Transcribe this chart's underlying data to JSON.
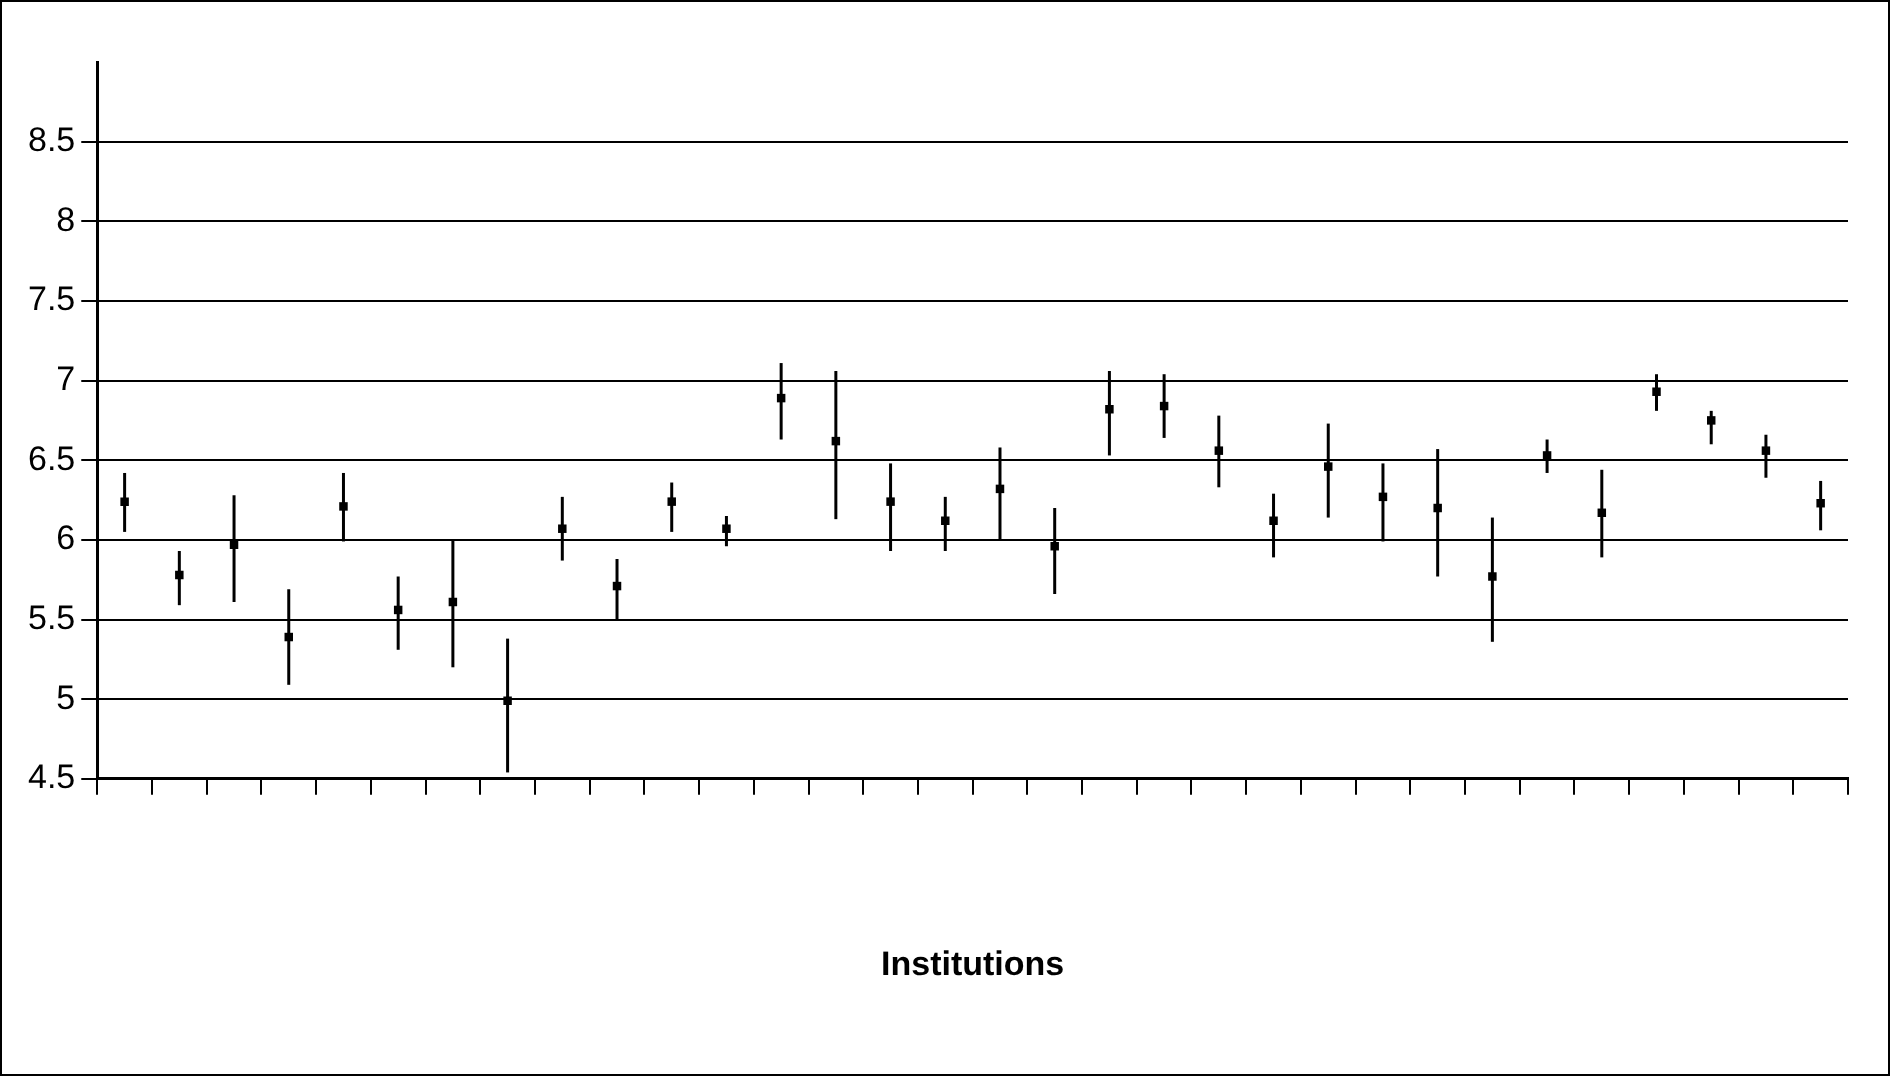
{
  "chart_data": {
    "type": "scatter",
    "xlabel": "Institutions",
    "categories": [
      null,
      null,
      null,
      null,
      null,
      null,
      null,
      null,
      null,
      null,
      null,
      null,
      null,
      null,
      null,
      null,
      null,
      null,
      null,
      null,
      null,
      null,
      null,
      null,
      null,
      null,
      null,
      null,
      null,
      null,
      null,
      null
    ],
    "series": [
      {
        "color": "#000000",
        "values": [
          6.24,
          5.78,
          5.97,
          5.39,
          6.21,
          5.56,
          5.61,
          4.99,
          6.07,
          5.71,
          6.24,
          6.07,
          6.89,
          6.62,
          6.24,
          6.12,
          6.32,
          5.96,
          6.82,
          6.84,
          6.56,
          6.12,
          6.46,
          6.27,
          6.2,
          5.77,
          6.53,
          6.17,
          6.93,
          6.75,
          6.56,
          6.23
        ],
        "errors": [
          [
            6.05,
            6.42
          ],
          [
            5.59,
            5.93
          ],
          [
            5.61,
            6.28
          ],
          [
            5.09,
            5.69
          ],
          [
            5.99,
            6.42
          ],
          [
            5.31,
            5.77
          ],
          [
            5.2,
            6.0
          ],
          [
            4.54,
            5.38
          ],
          [
            5.87,
            6.27
          ],
          [
            5.5,
            5.88
          ],
          [
            6.05,
            6.36
          ],
          [
            5.96,
            6.15
          ],
          [
            6.63,
            7.11
          ],
          [
            6.13,
            7.06
          ],
          [
            5.93,
            6.48
          ],
          [
            5.93,
            6.27
          ],
          [
            6.0,
            6.58
          ],
          [
            5.66,
            6.2
          ],
          [
            6.53,
            7.06
          ],
          [
            6.64,
            7.04
          ],
          [
            6.33,
            6.78
          ],
          [
            5.89,
            6.29
          ],
          [
            6.14,
            6.73
          ],
          [
            5.99,
            6.48
          ],
          [
            5.77,
            6.57
          ],
          [
            5.36,
            6.14
          ],
          [
            6.42,
            6.63
          ],
          [
            5.89,
            6.44
          ],
          [
            6.81,
            7.04
          ],
          [
            6.6,
            6.81
          ],
          [
            6.39,
            6.66
          ],
          [
            6.06,
            6.37
          ]
        ]
      }
    ],
    "ylim": [
      4.5,
      9
    ],
    "yticks": [
      4.5,
      5,
      5.5,
      6,
      6.5,
      7,
      7.5,
      8,
      8.5
    ],
    "grid": "y",
    "marker": "square"
  }
}
